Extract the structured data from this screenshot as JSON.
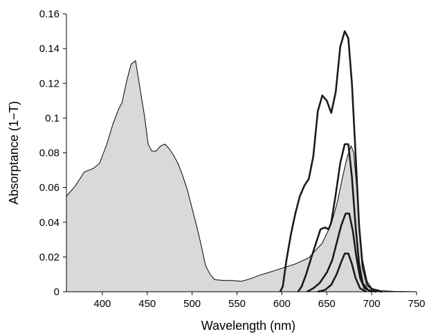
{
  "chart_data": {
    "type": "area",
    "xlabel": "Wavelength (nm)",
    "ylabel": "Absorptance  (1−T)",
    "xlim": [
      360,
      750
    ],
    "ylim": [
      0,
      0.16
    ],
    "x_ticks": [
      400,
      450,
      500,
      550,
      600,
      650,
      700,
      750
    ],
    "x_tick_labels": [
      "400",
      "450",
      "500",
      "550",
      "600",
      "650",
      "700",
      "750"
    ],
    "y_ticks": [
      0,
      0.02,
      0.04,
      0.06,
      0.08,
      0.1,
      0.12,
      0.14,
      0.16
    ],
    "y_tick_labels": [
      "0",
      "0.02",
      "0.04",
      "0.06",
      "0.08",
      "0.1",
      "0.12",
      "0.14",
      "0.16"
    ],
    "grid": false,
    "series": [
      {
        "style": "filled-area",
        "fill": "#d9d9d9",
        "stroke": "#000000",
        "points": [
          [
            360,
            0.055
          ],
          [
            370,
            0.061
          ],
          [
            380,
            0.069
          ],
          [
            390,
            0.071
          ],
          [
            397,
            0.074
          ],
          [
            405,
            0.085
          ],
          [
            412,
            0.097
          ],
          [
            418,
            0.105
          ],
          [
            422,
            0.109
          ],
          [
            427,
            0.121
          ],
          [
            432,
            0.131
          ],
          [
            437,
            0.133
          ],
          [
            442,
            0.117
          ],
          [
            447,
            0.101
          ],
          [
            451,
            0.085
          ],
          [
            455,
            0.081
          ],
          [
            460,
            0.081
          ],
          [
            465,
            0.084
          ],
          [
            470,
            0.085
          ],
          [
            475,
            0.082
          ],
          [
            480,
            0.078
          ],
          [
            485,
            0.073
          ],
          [
            490,
            0.066
          ],
          [
            495,
            0.058
          ],
          [
            500,
            0.048
          ],
          [
            505,
            0.038
          ],
          [
            510,
            0.027
          ],
          [
            515,
            0.015
          ],
          [
            520,
            0.01
          ],
          [
            525,
            0.007
          ],
          [
            535,
            0.0065
          ],
          [
            545,
            0.0065
          ],
          [
            555,
            0.006
          ],
          [
            565,
            0.0075
          ],
          [
            575,
            0.0095
          ],
          [
            585,
            0.011
          ],
          [
            600,
            0.0135
          ],
          [
            615,
            0.016
          ],
          [
            630,
            0.0195
          ],
          [
            645,
            0.028
          ],
          [
            655,
            0.039
          ],
          [
            662,
            0.052
          ],
          [
            668,
            0.067
          ],
          [
            673,
            0.078
          ],
          [
            677,
            0.084
          ],
          [
            680,
            0.08
          ],
          [
            683,
            0.062
          ],
          [
            686,
            0.038
          ],
          [
            690,
            0.018
          ],
          [
            695,
            0.006
          ],
          [
            700,
            0.002
          ],
          [
            710,
            0.0006
          ],
          [
            725,
            0.0002
          ],
          [
            750,
            0
          ]
        ]
      },
      {
        "style": "line",
        "stroke": "#1a1a1a",
        "points": [
          [
            598,
            0
          ],
          [
            601,
            0.003
          ],
          [
            605,
            0.018
          ],
          [
            610,
            0.033
          ],
          [
            615,
            0.045
          ],
          [
            620,
            0.055
          ],
          [
            625,
            0.061
          ],
          [
            630,
            0.065
          ],
          [
            635,
            0.078
          ],
          [
            640,
            0.104
          ],
          [
            645,
            0.113
          ],
          [
            650,
            0.11
          ],
          [
            655,
            0.103
          ],
          [
            660,
            0.115
          ],
          [
            665,
            0.141
          ],
          [
            670,
            0.15
          ],
          [
            674,
            0.146
          ],
          [
            678,
            0.12
          ],
          [
            682,
            0.08
          ],
          [
            686,
            0.038
          ],
          [
            690,
            0.014
          ],
          [
            695,
            0.004
          ],
          [
            702,
            0.0008
          ],
          [
            712,
            0
          ]
        ]
      },
      {
        "style": "line",
        "stroke": "#1a1a1a",
        "points": [
          [
            618,
            0
          ],
          [
            622,
            0.003
          ],
          [
            627,
            0.01
          ],
          [
            633,
            0.02
          ],
          [
            638,
            0.028
          ],
          [
            643,
            0.036
          ],
          [
            648,
            0.037
          ],
          [
            652,
            0.036
          ],
          [
            655,
            0.04
          ],
          [
            660,
            0.056
          ],
          [
            665,
            0.074
          ],
          [
            670,
            0.085
          ],
          [
            674,
            0.085
          ],
          [
            678,
            0.066
          ],
          [
            682,
            0.038
          ],
          [
            686,
            0.016
          ],
          [
            690,
            0.005
          ],
          [
            696,
            0.001
          ],
          [
            705,
            0
          ]
        ]
      },
      {
        "style": "line",
        "stroke": "#1a1a1a",
        "points": [
          [
            628,
            0
          ],
          [
            635,
            0.002
          ],
          [
            642,
            0.005
          ],
          [
            650,
            0.011
          ],
          [
            656,
            0.018
          ],
          [
            661,
            0.028
          ],
          [
            666,
            0.038
          ],
          [
            671,
            0.045
          ],
          [
            675,
            0.045
          ],
          [
            679,
            0.035
          ],
          [
            683,
            0.02
          ],
          [
            687,
            0.008
          ],
          [
            692,
            0.002
          ],
          [
            700,
            0
          ]
        ]
      },
      {
        "style": "line",
        "stroke": "#1a1a1a",
        "points": [
          [
            640,
            0
          ],
          [
            648,
            0.001
          ],
          [
            655,
            0.004
          ],
          [
            661,
            0.01
          ],
          [
            666,
            0.017
          ],
          [
            670,
            0.022
          ],
          [
            674,
            0.022
          ],
          [
            678,
            0.016
          ],
          [
            682,
            0.008
          ],
          [
            687,
            0.002
          ],
          [
            694,
            0
          ]
        ]
      }
    ]
  }
}
